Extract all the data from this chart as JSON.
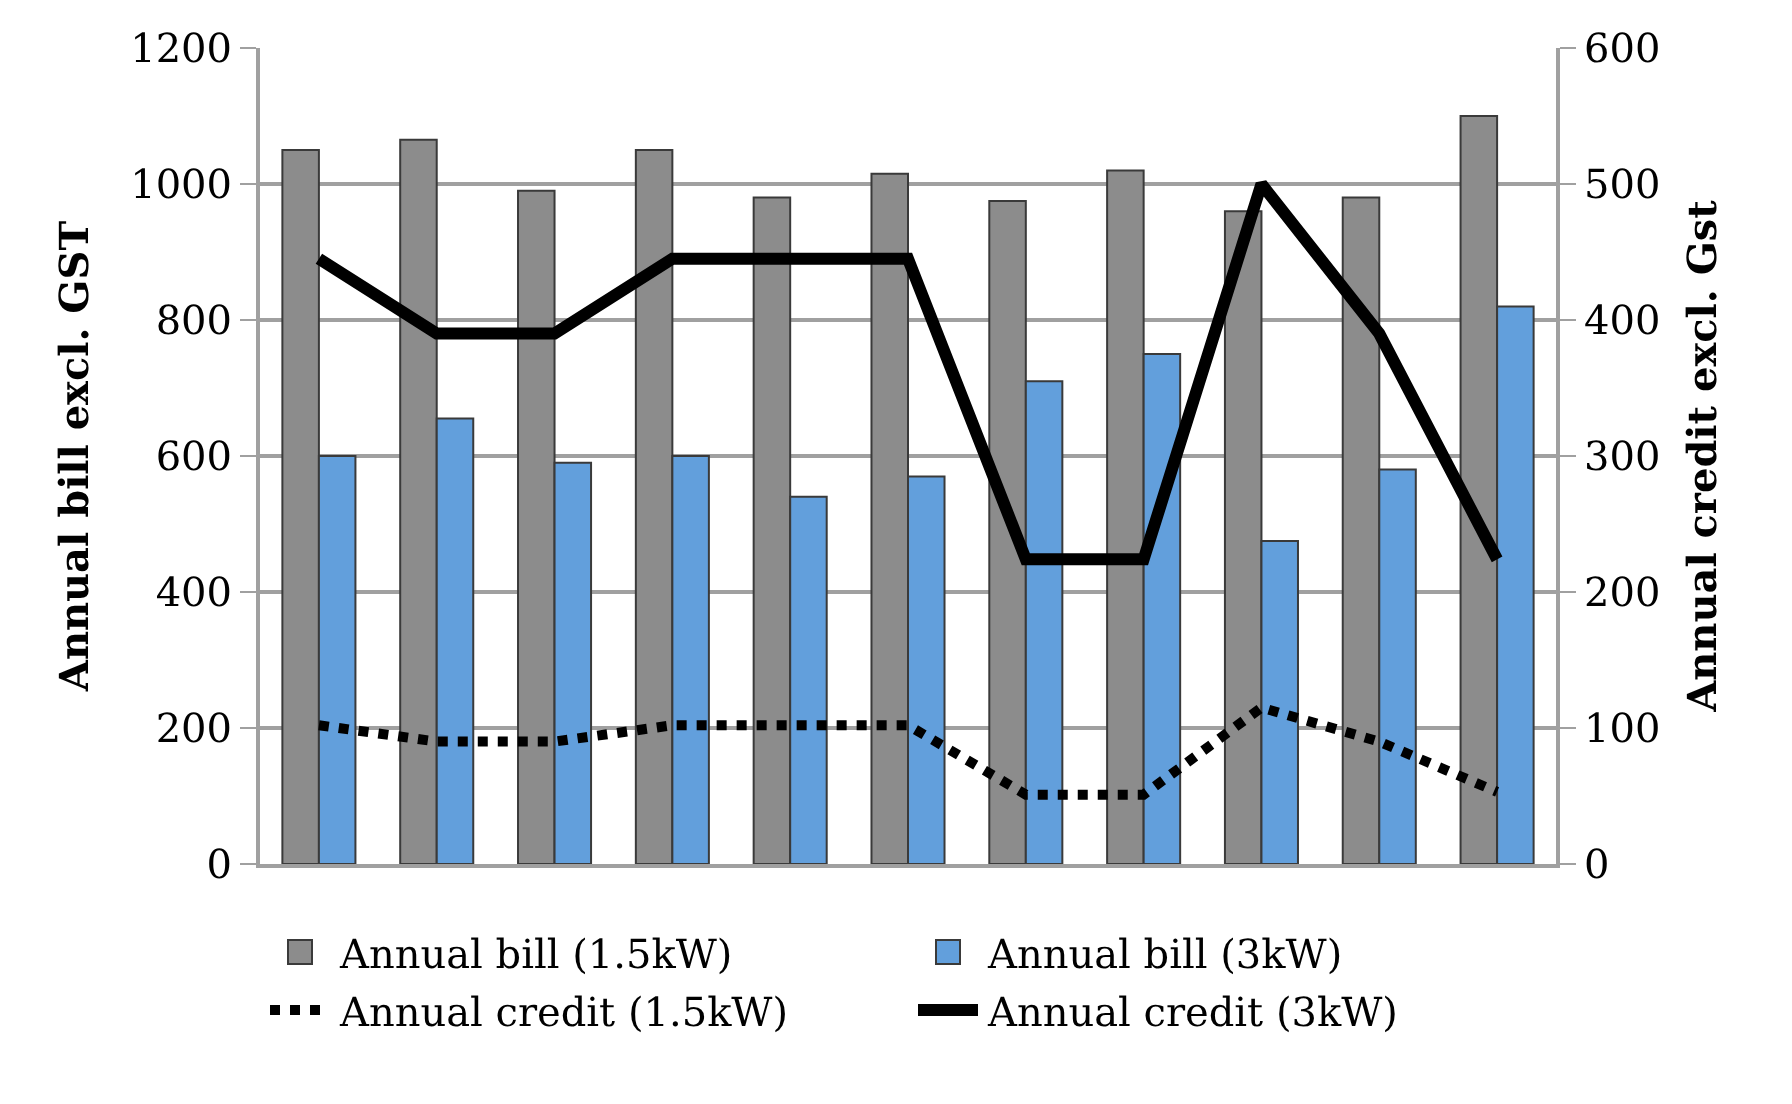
{
  "chart_data": {
    "type": "bar",
    "ylabel": "Annual bill excl. GST",
    "y2label": "Annual credit excl. Gst",
    "categories": [
      null,
      null,
      null,
      null,
      null,
      null,
      null,
      null,
      null,
      null,
      null
    ],
    "series": [
      {
        "name": "Annual bill (1.5kW)",
        "color": "#8c8c8c",
        "values": [
          1050,
          1065,
          990,
          1050,
          980,
          1015,
          975,
          1020,
          960,
          980,
          1100
        ]
      },
      {
        "name": "Annual bill (3kW)",
        "color": "#629fdc",
        "values": [
          600,
          655,
          590,
          600,
          540,
          570,
          710,
          750,
          475,
          580,
          820
        ]
      },
      {
        "name": "Annual credit (1.5kW)",
        "type": "line",
        "axis": "y2",
        "line_style": "dotted",
        "color": "#000000",
        "values": [
          102,
          90,
          90,
          102,
          102,
          102,
          51,
          51,
          115,
          90,
          53
        ]
      },
      {
        "name": "Annual credit (3kW)",
        "type": "line",
        "axis": "y2",
        "line_style": "solid",
        "color": "#000000",
        "values": [
          445,
          390,
          390,
          445,
          445,
          445,
          224,
          224,
          500,
          390,
          224
        ]
      }
    ],
    "ylim": [
      0,
      1200
    ],
    "yticks": [
      0,
      200,
      400,
      600,
      800,
      1000,
      1200
    ],
    "y2lim": [
      0,
      600
    ],
    "y2ticks": [
      0,
      100,
      200,
      300,
      400,
      500,
      600
    ],
    "grid": "y",
    "legend": "bottom",
    "tick_labels": "y"
  }
}
